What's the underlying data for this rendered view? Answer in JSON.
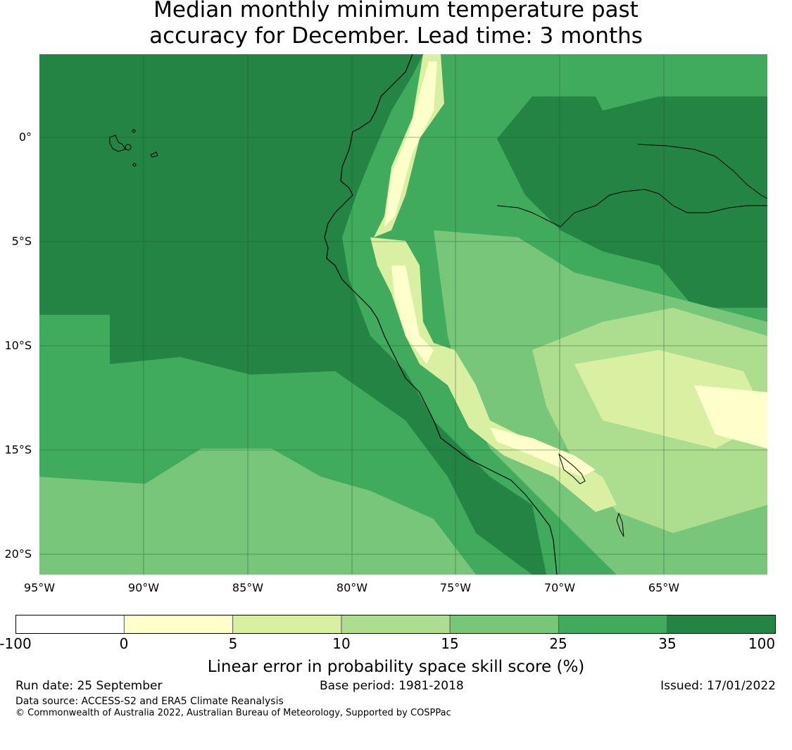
{
  "title": {
    "line1": "Median monthly minimum temperature past",
    "line2": "accuracy for December. Lead time: 3 months"
  },
  "map": {
    "lat_labels": [
      "0°",
      "5°S",
      "10°S",
      "15°S",
      "20°S"
    ],
    "lon_labels": [
      "95°W",
      "90°W",
      "85°W",
      "80°W",
      "75°W",
      "70°W",
      "65°W"
    ],
    "gridlines": true,
    "colors": {
      "ocean": "#238443",
      "coast": "#000000"
    }
  },
  "colorbar": {
    "ticks": [
      "-100",
      "0",
      "5",
      "10",
      "15",
      "25",
      "35",
      "100"
    ],
    "colors": [
      "#ffffff",
      "#ffffcc",
      "#d9f0a3",
      "#addd8e",
      "#78c679",
      "#41ab5d",
      "#238443"
    ],
    "label": "Linear error in probability space skill score (%)"
  },
  "footer": {
    "run_date": "Run date: 25 September",
    "base_period": "Base period: 1981-2018",
    "issued": "Issued: 17/01/2022",
    "data_source": "Data source: ACCESS-S2 and ERA5 Climate Reanalysis",
    "copyright": "© Commonwealth of Australia 2022, Australian Bureau of Meteorology, Supported by COSPPac"
  }
}
